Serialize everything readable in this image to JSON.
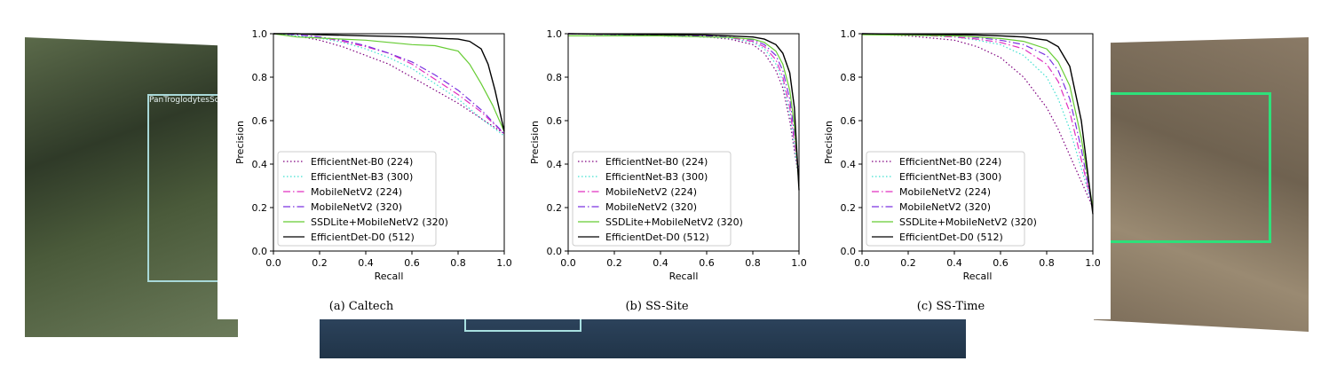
{
  "background_photos": {
    "left_label": "PanTroglodytesSchwe",
    "box_colors": {
      "left": "#a8d8d8",
      "right": "#2ee07a",
      "bottom": "#a8e0e0"
    }
  },
  "chart_data": [
    {
      "type": "line",
      "caption": "(a) Caltech",
      "xlabel": "Recall",
      "ylabel": "Precision",
      "xlim": [
        0,
        1
      ],
      "ylim": [
        0,
        1
      ],
      "xticks": [
        "0.0",
        "0.2",
        "0.4",
        "0.6",
        "0.8",
        "1.0"
      ],
      "yticks": [
        "0.0",
        "0.2",
        "0.4",
        "0.6",
        "0.8",
        "1.0"
      ],
      "grid": false,
      "legend_position": "lower-left",
      "series": [
        {
          "name": "EfficientNet-B0 (224)",
          "color": "#7f007f",
          "dash": "1.5,2.5",
          "x": [
            0,
            0.1,
            0.2,
            0.3,
            0.4,
            0.5,
            0.6,
            0.7,
            0.8,
            0.9,
            1.0
          ],
          "y": [
            1.0,
            0.99,
            0.97,
            0.94,
            0.9,
            0.86,
            0.8,
            0.74,
            0.68,
            0.61,
            0.54
          ]
        },
        {
          "name": "EfficientNet-B3 (300)",
          "color": "#40e0d0",
          "dash": "1.5,2.5",
          "x": [
            0,
            0.1,
            0.2,
            0.3,
            0.4,
            0.5,
            0.6,
            0.7,
            0.8,
            0.9,
            1.0
          ],
          "y": [
            1.0,
            0.99,
            0.98,
            0.96,
            0.93,
            0.89,
            0.84,
            0.77,
            0.7,
            0.61,
            0.53
          ]
        },
        {
          "name": "MobileNetV2 (224)",
          "color": "#e030c0",
          "dash": "8,3,1.5,3",
          "x": [
            0,
            0.1,
            0.2,
            0.3,
            0.4,
            0.5,
            0.6,
            0.7,
            0.8,
            0.9,
            1.0
          ],
          "y": [
            1.0,
            0.995,
            0.985,
            0.965,
            0.94,
            0.91,
            0.86,
            0.79,
            0.72,
            0.64,
            0.54
          ]
        },
        {
          "name": "MobileNetV2 (320)",
          "color": "#7a30e0",
          "dash": "8,3,1.5,3",
          "x": [
            0,
            0.1,
            0.2,
            0.3,
            0.4,
            0.5,
            0.6,
            0.7,
            0.8,
            0.9,
            1.0
          ],
          "y": [
            1.0,
            0.995,
            0.985,
            0.97,
            0.945,
            0.91,
            0.87,
            0.81,
            0.74,
            0.65,
            0.54
          ]
        },
        {
          "name": "SSDLite+MobileNetV2 (320)",
          "color": "#66cc33",
          "dash": "",
          "x": [
            0,
            0.1,
            0.2,
            0.3,
            0.4,
            0.5,
            0.6,
            0.7,
            0.8,
            0.85,
            0.9,
            0.95,
            1.0
          ],
          "y": [
            1.0,
            0.985,
            0.98,
            0.975,
            0.97,
            0.96,
            0.95,
            0.945,
            0.92,
            0.86,
            0.77,
            0.67,
            0.55
          ]
        },
        {
          "name": "EfficientDet-D0 (512)",
          "color": "#000000",
          "dash": "",
          "x": [
            0,
            0.1,
            0.2,
            0.3,
            0.4,
            0.5,
            0.6,
            0.7,
            0.8,
            0.85,
            0.9,
            0.93,
            0.96,
            1.0
          ],
          "y": [
            1.0,
            1.0,
            0.995,
            0.993,
            0.99,
            0.988,
            0.985,
            0.98,
            0.975,
            0.965,
            0.93,
            0.86,
            0.74,
            0.55
          ]
        }
      ]
    },
    {
      "type": "line",
      "caption": "(b) SS-Site",
      "xlabel": "Recall",
      "ylabel": "Precision",
      "xlim": [
        0,
        1
      ],
      "ylim": [
        0,
        1
      ],
      "xticks": [
        "0.0",
        "0.2",
        "0.4",
        "0.6",
        "0.8",
        "1.0"
      ],
      "yticks": [
        "0.0",
        "0.2",
        "0.4",
        "0.6",
        "0.8",
        "1.0"
      ],
      "grid": false,
      "legend_position": "lower-left",
      "series": [
        {
          "name": "EfficientNet-B0 (224)",
          "color": "#7f007f",
          "dash": "1.5,2.5",
          "x": [
            0,
            0.2,
            0.4,
            0.6,
            0.7,
            0.8,
            0.85,
            0.9,
            0.93,
            0.96,
            0.98,
            1.0
          ],
          "y": [
            1.0,
            0.995,
            0.99,
            0.985,
            0.975,
            0.95,
            0.91,
            0.83,
            0.75,
            0.6,
            0.46,
            0.33
          ]
        },
        {
          "name": "EfficientNet-B3 (300)",
          "color": "#40e0d0",
          "dash": "1.5,2.5",
          "x": [
            0,
            0.2,
            0.4,
            0.6,
            0.7,
            0.8,
            0.85,
            0.9,
            0.93,
            0.96,
            0.98,
            1.0
          ],
          "y": [
            1.0,
            0.995,
            0.99,
            0.985,
            0.98,
            0.96,
            0.93,
            0.86,
            0.78,
            0.63,
            0.48,
            0.33
          ]
        },
        {
          "name": "MobileNetV2 (224)",
          "color": "#e030c0",
          "dash": "8,3,1.5,3",
          "x": [
            0,
            0.2,
            0.4,
            0.6,
            0.7,
            0.8,
            0.85,
            0.9,
            0.93,
            0.96,
            0.98,
            1.0
          ],
          "y": [
            1.0,
            0.996,
            0.992,
            0.988,
            0.982,
            0.965,
            0.94,
            0.88,
            0.8,
            0.66,
            0.5,
            0.34
          ]
        },
        {
          "name": "MobileNetV2 (320)",
          "color": "#7a30e0",
          "dash": "8,3,1.5,3",
          "x": [
            0,
            0.2,
            0.4,
            0.6,
            0.7,
            0.8,
            0.85,
            0.9,
            0.93,
            0.96,
            0.98,
            1.0
          ],
          "y": [
            1.0,
            0.996,
            0.993,
            0.99,
            0.985,
            0.972,
            0.95,
            0.9,
            0.83,
            0.7,
            0.54,
            0.35
          ]
        },
        {
          "name": "SSDLite+MobileNetV2 (320)",
          "color": "#66cc33",
          "dash": "",
          "x": [
            0,
            0.2,
            0.4,
            0.6,
            0.7,
            0.8,
            0.85,
            0.9,
            0.93,
            0.96,
            0.98,
            1.0
          ],
          "y": [
            0.99,
            0.99,
            0.99,
            0.985,
            0.983,
            0.975,
            0.96,
            0.92,
            0.86,
            0.74,
            0.58,
            0.3
          ]
        },
        {
          "name": "EfficientDet-D0 (512)",
          "color": "#000000",
          "dash": "",
          "x": [
            0,
            0.2,
            0.4,
            0.6,
            0.7,
            0.8,
            0.85,
            0.9,
            0.93,
            0.96,
            0.98,
            1.0
          ],
          "y": [
            1.0,
            0.998,
            0.996,
            0.994,
            0.99,
            0.985,
            0.975,
            0.95,
            0.91,
            0.82,
            0.66,
            0.28
          ]
        }
      ]
    },
    {
      "type": "line",
      "caption": "(c) SS-Time",
      "xlabel": "Recall",
      "ylabel": "Precision",
      "xlim": [
        0,
        1
      ],
      "ylim": [
        0,
        1
      ],
      "xticks": [
        "0.0",
        "0.2",
        "0.4",
        "0.6",
        "0.8",
        "1.0"
      ],
      "yticks": [
        "0.0",
        "0.2",
        "0.4",
        "0.6",
        "0.8",
        "1.0"
      ],
      "grid": false,
      "legend_position": "lower-left",
      "series": [
        {
          "name": "EfficientNet-B0 (224)",
          "color": "#7f007f",
          "dash": "1.5,2.5",
          "x": [
            0,
            0.2,
            0.4,
            0.5,
            0.6,
            0.7,
            0.8,
            0.85,
            0.9,
            0.95,
            1.0
          ],
          "y": [
            1.0,
            0.99,
            0.97,
            0.94,
            0.89,
            0.8,
            0.66,
            0.56,
            0.44,
            0.32,
            0.2
          ]
        },
        {
          "name": "EfficientNet-B3 (300)",
          "color": "#40e0d0",
          "dash": "1.5,2.5",
          "x": [
            0,
            0.2,
            0.4,
            0.5,
            0.6,
            0.7,
            0.8,
            0.85,
            0.9,
            0.95,
            1.0
          ],
          "y": [
            1.0,
            0.995,
            0.985,
            0.97,
            0.95,
            0.9,
            0.8,
            0.7,
            0.56,
            0.38,
            0.2
          ]
        },
        {
          "name": "MobileNetV2 (224)",
          "color": "#e030c0",
          "dash": "8,3,1.5,3",
          "x": [
            0,
            0.2,
            0.4,
            0.5,
            0.6,
            0.7,
            0.8,
            0.85,
            0.9,
            0.95,
            1.0
          ],
          "y": [
            1.0,
            0.995,
            0.985,
            0.975,
            0.96,
            0.93,
            0.86,
            0.78,
            0.64,
            0.42,
            0.2
          ]
        },
        {
          "name": "MobileNetV2 (320)",
          "color": "#7a30e0",
          "dash": "8,3,1.5,3",
          "x": [
            0,
            0.2,
            0.4,
            0.5,
            0.6,
            0.7,
            0.8,
            0.85,
            0.9,
            0.95,
            1.0
          ],
          "y": [
            1.0,
            0.996,
            0.99,
            0.982,
            0.97,
            0.95,
            0.9,
            0.83,
            0.7,
            0.47,
            0.19
          ]
        },
        {
          "name": "SSDLite+MobileNetV2 (320)",
          "color": "#66cc33",
          "dash": "",
          "x": [
            0,
            0.2,
            0.4,
            0.5,
            0.6,
            0.7,
            0.8,
            0.85,
            0.9,
            0.95,
            1.0
          ],
          "y": [
            0.995,
            0.993,
            0.99,
            0.985,
            0.978,
            0.965,
            0.93,
            0.87,
            0.76,
            0.52,
            0.2
          ]
        },
        {
          "name": "EfficientDet-D0 (512)",
          "color": "#000000",
          "dash": "",
          "x": [
            0,
            0.2,
            0.4,
            0.5,
            0.6,
            0.7,
            0.8,
            0.85,
            0.9,
            0.95,
            1.0
          ],
          "y": [
            1.0,
            0.998,
            0.996,
            0.994,
            0.99,
            0.985,
            0.97,
            0.94,
            0.85,
            0.6,
            0.17
          ]
        }
      ]
    }
  ]
}
